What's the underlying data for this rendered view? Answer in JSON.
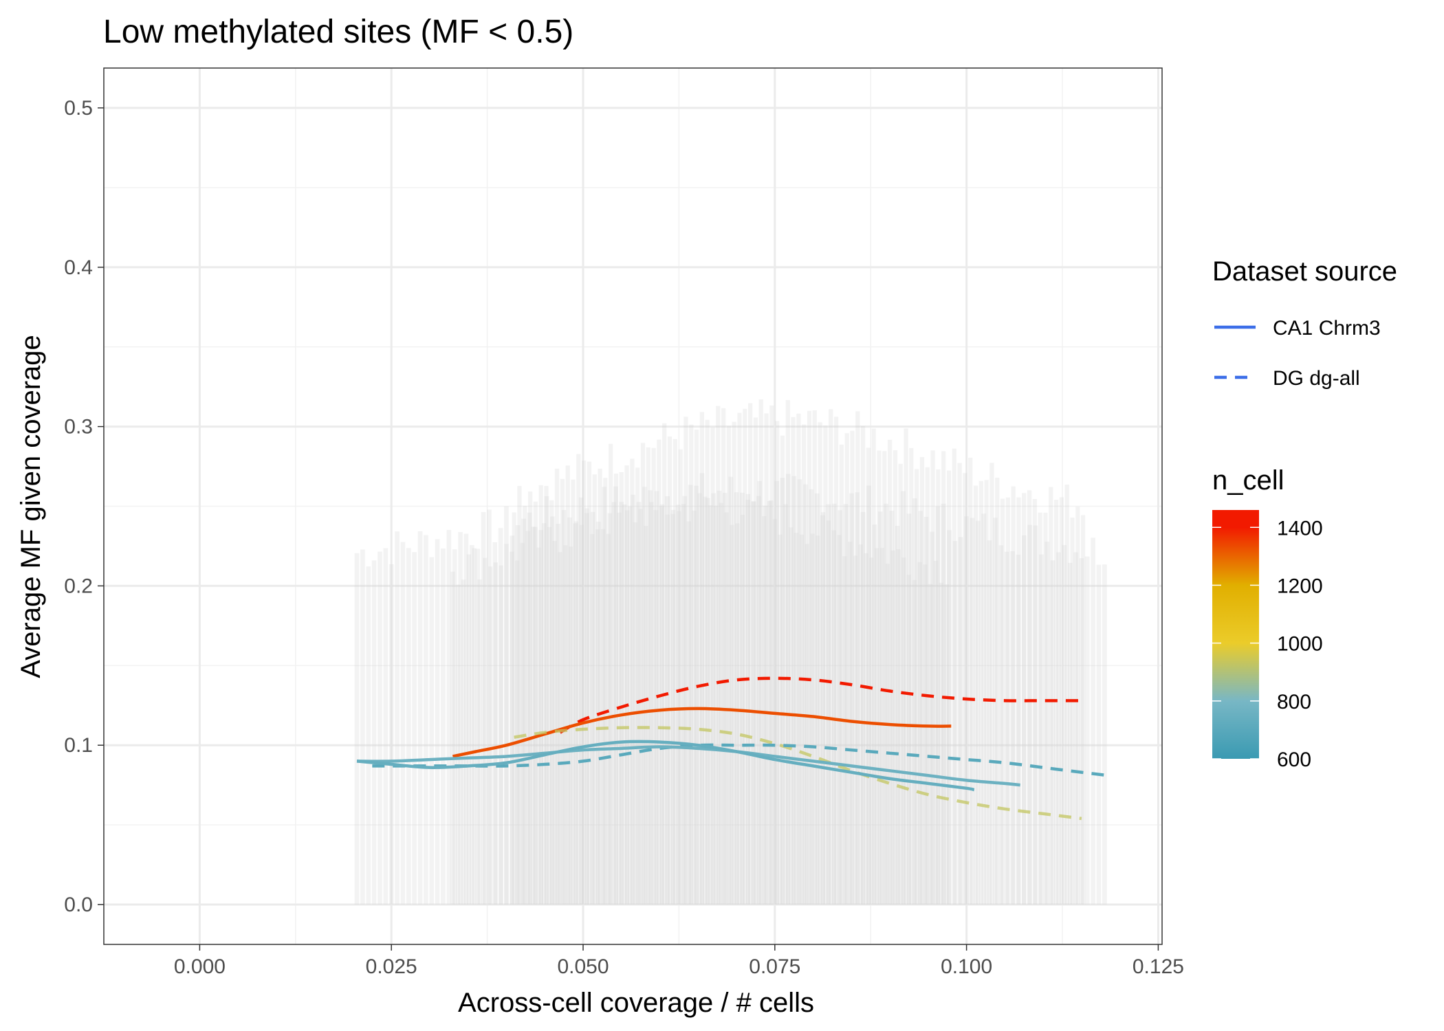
{
  "chart_data": {
    "type": "line",
    "title": "Low methylated sites (MF < 0.5)",
    "xlabel": "Across-cell coverage / # cells",
    "ylabel": "Average MF given coverage",
    "xlim": [
      -0.0125,
      0.1255
    ],
    "ylim": [
      -0.025,
      0.525
    ],
    "x_ticks": [
      0.0,
      0.025,
      0.05,
      0.075,
      0.1,
      0.125
    ],
    "x_tick_labels": [
      "0.000",
      "0.025",
      "0.050",
      "0.075",
      "0.100",
      "0.125"
    ],
    "y_ticks": [
      0.0,
      0.1,
      0.2,
      0.3,
      0.4,
      0.5
    ],
    "y_tick_labels": [
      "0.0",
      "0.1",
      "0.2",
      "0.3",
      "0.4",
      "0.5"
    ],
    "grid": true,
    "linetype_legend": {
      "title": "Dataset source",
      "placement": "right",
      "entries": [
        {
          "label": "CA1 Chrm3",
          "linetype": "solid"
        },
        {
          "label": "DG dg-all",
          "linetype": "dashed"
        }
      ],
      "color": "#3c6ee8"
    },
    "color_legend": {
      "title": "n_cell",
      "placement": "right",
      "min": 600,
      "max": 1460,
      "ticks": [
        600,
        800,
        1000,
        1200,
        1400
      ],
      "tick_labels": [
        "600",
        "800",
        "1000",
        "1200",
        "1400"
      ],
      "gradient": [
        {
          "value": 600,
          "color": "#3a9ab2"
        },
        {
          "value": 800,
          "color": "#78b7c5"
        },
        {
          "value": 1000,
          "color": "#ebcc2a"
        },
        {
          "value": 1200,
          "color": "#e1af00"
        },
        {
          "value": 1400,
          "color": "#f21a00"
        }
      ]
    },
    "background_bars": {
      "color": "#d3d3d3",
      "groups": [
        {
          "x_start": 0.0205,
          "x_end": 0.1185,
          "step": 0.00075,
          "base": 0.21,
          "peak": 0.26,
          "peak_x": 0.07
        },
        {
          "x_start": 0.041,
          "x_end": 0.1155,
          "step": 0.0007,
          "base": 0.24,
          "peak": 0.305,
          "peak_x": 0.075
        },
        {
          "x_start": 0.033,
          "x_end": 0.098,
          "step": 0.0007,
          "base": 0.2,
          "peak": 0.25,
          "peak_x": 0.065
        }
      ]
    },
    "series": [
      {
        "name": "",
        "dataset": "DG dg-all",
        "linetype": "dashed",
        "n_cell": 1460,
        "x": [
          0.047,
          0.05,
          0.055,
          0.06,
          0.065,
          0.07,
          0.075,
          0.08,
          0.085,
          0.09,
          0.095,
          0.1,
          0.105,
          0.11,
          0.115
        ],
        "y": [
          0.108,
          0.116,
          0.124,
          0.131,
          0.137,
          0.141,
          0.142,
          0.141,
          0.138,
          0.134,
          0.131,
          0.129,
          0.128,
          0.128,
          0.128
        ]
      },
      {
        "name": "",
        "dataset": "CA1 Chrm3",
        "linetype": "solid",
        "n_cell": 1330,
        "x": [
          0.033,
          0.036,
          0.04,
          0.045,
          0.05,
          0.055,
          0.06,
          0.065,
          0.07,
          0.075,
          0.08,
          0.085,
          0.09,
          0.095,
          0.098
        ],
        "y": [
          0.093,
          0.096,
          0.1,
          0.107,
          0.114,
          0.119,
          0.122,
          0.123,
          0.122,
          0.12,
          0.118,
          0.115,
          0.113,
          0.112,
          0.112
        ]
      },
      {
        "name": "",
        "dataset": "DG dg-all",
        "linetype": "dashed",
        "n_cell": 930,
        "x": [
          0.041,
          0.045,
          0.05,
          0.055,
          0.06,
          0.065,
          0.07,
          0.075,
          0.08,
          0.085,
          0.09,
          0.095,
          0.1,
          0.105,
          0.11,
          0.115
        ],
        "y": [
          0.105,
          0.108,
          0.11,
          0.111,
          0.111,
          0.11,
          0.107,
          0.101,
          0.093,
          0.084,
          0.076,
          0.069,
          0.064,
          0.06,
          0.057,
          0.054
        ]
      },
      {
        "name": "",
        "dataset": "DG dg-all",
        "linetype": "dashed",
        "n_cell": 700,
        "x": [
          0.0225,
          0.025,
          0.03,
          0.035,
          0.04,
          0.045,
          0.05,
          0.055,
          0.06,
          0.065,
          0.07,
          0.075,
          0.08,
          0.085,
          0.09,
          0.095,
          0.1,
          0.105,
          0.11,
          0.115,
          0.1185
        ],
        "y": [
          0.087,
          0.087,
          0.087,
          0.087,
          0.087,
          0.088,
          0.09,
          0.094,
          0.098,
          0.1,
          0.1,
          0.1,
          0.099,
          0.097,
          0.095,
          0.093,
          0.091,
          0.089,
          0.086,
          0.083,
          0.081
        ]
      },
      {
        "name": "",
        "dataset": "CA1 Chrm3",
        "linetype": "solid",
        "n_cell": 760,
        "x": [
          0.0205,
          0.025,
          0.03,
          0.035,
          0.04,
          0.045,
          0.05,
          0.055,
          0.06,
          0.065,
          0.07,
          0.075,
          0.08,
          0.085,
          0.09,
          0.095,
          0.1,
          0.105,
          0.107
        ],
        "y": [
          0.09,
          0.09,
          0.091,
          0.092,
          0.093,
          0.095,
          0.097,
          0.098,
          0.099,
          0.098,
          0.096,
          0.093,
          0.09,
          0.087,
          0.084,
          0.081,
          0.078,
          0.076,
          0.075
        ]
      },
      {
        "name": "",
        "dataset": "CA1 Chrm3",
        "linetype": "solid",
        "n_cell": 740,
        "x": [
          0.0205,
          0.025,
          0.03,
          0.035,
          0.04,
          0.045,
          0.05,
          0.055,
          0.06,
          0.065,
          0.07,
          0.075,
          0.08,
          0.085,
          0.09,
          0.095,
          0.1,
          0.101
        ],
        "y": [
          0.09,
          0.088,
          0.086,
          0.087,
          0.089,
          0.094,
          0.099,
          0.102,
          0.102,
          0.1,
          0.096,
          0.091,
          0.087,
          0.083,
          0.079,
          0.076,
          0.073,
          0.072
        ]
      }
    ]
  }
}
